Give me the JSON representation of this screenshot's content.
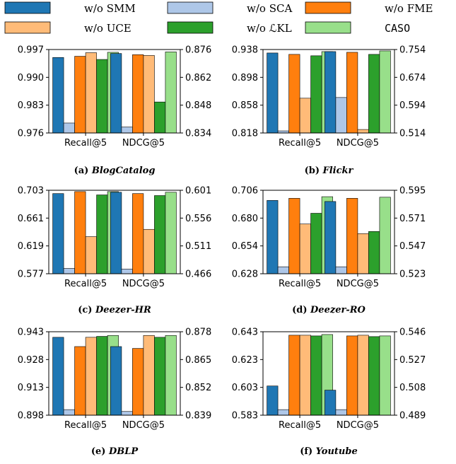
{
  "legend": [
    {
      "label": "w/o SMM",
      "color": "#1f77b4",
      "mono": false
    },
    {
      "label": "w/o SCA",
      "color": "#aec7e8",
      "mono": false
    },
    {
      "label": "w/o FME",
      "color": "#ff7f0e",
      "mono": false
    },
    {
      "label": "w/o UCE",
      "color": "#ffbb78",
      "mono": false
    },
    {
      "label": "w/o ℒKL",
      "color": "#2ca02c",
      "mono": false
    },
    {
      "label": "CASO",
      "color": "#98df8a",
      "mono": true
    }
  ],
  "chart_data": [
    {
      "type": "bar",
      "caption_prefix": "(a)",
      "caption_name": "BlogCatalog",
      "categories": [
        "Recall@5",
        "NDCG@5"
      ],
      "left_axis": {
        "ylim": [
          0.976,
          0.997
        ],
        "ticks": [
          "0.976",
          "0.983",
          "0.990",
          "0.997"
        ]
      },
      "right_axis": {
        "ylim": [
          0.834,
          0.876
        ],
        "ticks": [
          "0.834",
          "0.848",
          "0.862",
          "0.876"
        ]
      },
      "series": [
        {
          "values": [
            0.995,
            0.996
          ]
        },
        {
          "values": [
            0.9785,
            0.9775
          ]
        },
        {
          "values": [
            0.9953,
            0.9957
          ]
        },
        {
          "values": [
            0.9962,
            0.9955
          ]
        },
        {
          "values": [
            0.9945,
            0.9838
          ]
        },
        {
          "values": [
            0.9963,
            0.9964
          ]
        }
      ]
    },
    {
      "type": "bar",
      "caption_prefix": "(b)",
      "caption_name": "Flickr",
      "categories": [
        "Recall@5",
        "NDCG@5"
      ],
      "left_axis": {
        "ylim": [
          0.818,
          0.938
        ],
        "ticks": [
          "0.818",
          "0.858",
          "0.898",
          "0.938"
        ]
      },
      "right_axis": {
        "ylim": [
          0.514,
          0.754
        ],
        "ticks": [
          "0.514",
          "0.594",
          "0.674",
          "0.754"
        ]
      },
      "series": [
        {
          "values": [
            0.933,
            0.935
          ]
        },
        {
          "values": [
            0.821,
            0.869
          ]
        },
        {
          "values": [
            0.931,
            0.934
          ]
        },
        {
          "values": [
            0.868,
            0.823
          ]
        },
        {
          "values": [
            0.929,
            0.931
          ]
        },
        {
          "values": [
            0.935,
            0.936
          ]
        }
      ]
    },
    {
      "type": "bar",
      "caption_prefix": "(c)",
      "caption_name": "Deezer-HR",
      "categories": [
        "Recall@5",
        "NDCG@5"
      ],
      "left_axis": {
        "ylim": [
          0.577,
          0.703
        ],
        "ticks": [
          "0.577",
          "0.619",
          "0.661",
          "0.703"
        ]
      },
      "right_axis": {
        "ylim": [
          0.466,
          0.601
        ],
        "ticks": [
          "0.466",
          "0.511",
          "0.556",
          "0.601"
        ]
      },
      "series": [
        {
          "values": [
            0.698,
            0.7
          ]
        },
        {
          "values": [
            0.585,
            0.584
          ]
        },
        {
          "values": [
            0.701,
            0.698
          ]
        },
        {
          "values": [
            0.633,
            0.644
          ]
        },
        {
          "values": [
            0.696,
            0.695
          ]
        },
        {
          "values": [
            0.701,
            0.7
          ]
        }
      ]
    },
    {
      "type": "bar",
      "caption_prefix": "(d)",
      "caption_name": "Deezer-RO",
      "categories": [
        "Recall@5",
        "NDCG@5"
      ],
      "left_axis": {
        "ylim": [
          0.628,
          0.706
        ],
        "ticks": [
          "0.628",
          "0.654",
          "0.680",
          "0.706"
        ]
      },
      "right_axis": {
        "ylim": [
          0.523,
          0.595
        ],
        "ticks": [
          "0.523",
          "0.547",
          "0.571",
          "0.595"
        ]
      },
      "series": [
        {
          "values": [
            0.6965,
            0.6955
          ]
        },
        {
          "values": [
            0.6345,
            0.6345
          ]
        },
        {
          "values": [
            0.6985,
            0.6985
          ]
        },
        {
          "values": [
            0.6745,
            0.6655
          ]
        },
        {
          "values": [
            0.6845,
            0.6675
          ]
        },
        {
          "values": [
            0.7,
            0.6995
          ]
        }
      ]
    },
    {
      "type": "bar",
      "caption_prefix": "(e)",
      "caption_name": "DBLP",
      "categories": [
        "Recall@5",
        "NDCG@5"
      ],
      "left_axis": {
        "ylim": [
          0.898,
          0.943
        ],
        "ticks": [
          "0.898",
          "0.913",
          "0.928",
          "0.943"
        ]
      },
      "right_axis": {
        "ylim": [
          0.839,
          0.878
        ],
        "ticks": [
          "0.839",
          "0.852",
          "0.865",
          "0.878"
        ]
      },
      "series": [
        {
          "values": [
            0.94,
            0.935
          ]
        },
        {
          "values": [
            0.901,
            0.9
          ]
        },
        {
          "values": [
            0.935,
            0.934
          ]
        },
        {
          "values": [
            0.94,
            0.941
          ]
        },
        {
          "values": [
            0.9405,
            0.94
          ]
        },
        {
          "values": [
            0.941,
            0.941
          ]
        }
      ]
    },
    {
      "type": "bar",
      "caption_prefix": "(f)",
      "caption_name": "Youtube",
      "categories": [
        "Recall@5",
        "NDCG@5"
      ],
      "left_axis": {
        "ylim": [
          0.583,
          0.643
        ],
        "ticks": [
          "0.583",
          "0.603",
          "0.623",
          "0.643"
        ]
      },
      "right_axis": {
        "ylim": [
          0.489,
          0.546
        ],
        "ticks": [
          "0.489",
          "0.508",
          "0.527",
          "0.546"
        ]
      },
      "series": [
        {
          "values": [
            0.604,
            0.601
          ]
        },
        {
          "values": [
            0.587,
            0.587
          ]
        },
        {
          "values": [
            0.6405,
            0.64
          ]
        },
        {
          "values": [
            0.6405,
            0.6405
          ]
        },
        {
          "values": [
            0.64,
            0.6395
          ]
        },
        {
          "values": [
            0.641,
            0.64
          ]
        }
      ]
    }
  ]
}
